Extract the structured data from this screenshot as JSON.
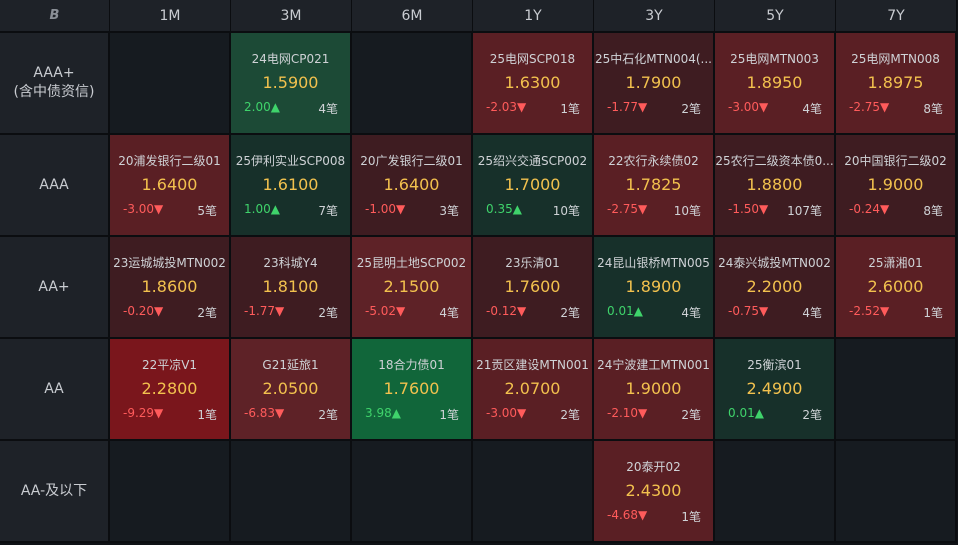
{
  "corner_icon": "b-logo-icon",
  "columns": [
    "1M",
    "3M",
    "6M",
    "1Y",
    "3Y",
    "5Y",
    "7Y"
  ],
  "rows": [
    {
      "label_line1": "AAA+",
      "label_line2": "(含中债资信)"
    },
    {
      "label_line1": "AAA",
      "label_line2": ""
    },
    {
      "label_line1": "AA+",
      "label_line2": ""
    },
    {
      "label_line1": "AA",
      "label_line2": ""
    },
    {
      "label_line1": "AA-及以下",
      "label_line2": ""
    }
  ],
  "cells": {
    "r0": {
      "c1": {
        "name": "24电网CP021",
        "rate": "1.5900",
        "change": "2.00▲",
        "count": "4笔",
        "dir": "up",
        "tone": "grn2"
      },
      "c3": {
        "name": "25电网SCP018",
        "rate": "1.6300",
        "change": "-2.03▼",
        "count": "1笔",
        "dir": "down",
        "tone": "red2"
      },
      "c4": {
        "name": "25中石化MTN004(...",
        "rate": "1.7900",
        "change": "-1.77▼",
        "count": "2笔",
        "dir": "down",
        "tone": "red1"
      },
      "c5": {
        "name": "25电网MTN003",
        "rate": "1.8950",
        "change": "-3.00▼",
        "count": "4笔",
        "dir": "down",
        "tone": "red2"
      },
      "c6": {
        "name": "25电网MTN008",
        "rate": "1.8975",
        "change": "-2.75▼",
        "count": "8笔",
        "dir": "down",
        "tone": "red2"
      }
    },
    "r1": {
      "c0": {
        "name": "20浦发银行二级01",
        "rate": "1.6400",
        "change": "-3.00▼",
        "count": "5笔",
        "dir": "down",
        "tone": "red2"
      },
      "c1": {
        "name": "25伊利实业SCP008",
        "rate": "1.6100",
        "change": "1.00▲",
        "count": "7笔",
        "dir": "up",
        "tone": "grn1"
      },
      "c2": {
        "name": "20广发银行二级01",
        "rate": "1.6400",
        "change": "-1.00▼",
        "count": "3笔",
        "dir": "down",
        "tone": "red1"
      },
      "c3": {
        "name": "25绍兴交通SCP002",
        "rate": "1.7000",
        "change": "0.35▲",
        "count": "10笔",
        "dir": "up",
        "tone": "grn1"
      },
      "c4": {
        "name": "22农行永续债02",
        "rate": "1.7825",
        "change": "-2.75▼",
        "count": "10笔",
        "dir": "down",
        "tone": "red2"
      },
      "c5": {
        "name": "25农行二级资本债0...",
        "rate": "1.8800",
        "change": "-1.50▼",
        "count": "107笔",
        "dir": "down",
        "tone": "red1"
      },
      "c6": {
        "name": "20中国银行二级02",
        "rate": "1.9000",
        "change": "-0.24▼",
        "count": "8笔",
        "dir": "down",
        "tone": "red1"
      }
    },
    "r2": {
      "c0": {
        "name": "23运城城投MTN002",
        "rate": "1.8600",
        "change": "-0.20▼",
        "count": "2笔",
        "dir": "down",
        "tone": "red1"
      },
      "c1": {
        "name": "23科城Y4",
        "rate": "1.8100",
        "change": "-1.77▼",
        "count": "2笔",
        "dir": "down",
        "tone": "red1"
      },
      "c2": {
        "name": "25昆明土地SCP002",
        "rate": "2.1500",
        "change": "-5.02▼",
        "count": "4笔",
        "dir": "down",
        "tone": "red4"
      },
      "c3": {
        "name": "23乐清01",
        "rate": "1.7600",
        "change": "-0.12▼",
        "count": "2笔",
        "dir": "down",
        "tone": "red1"
      },
      "c4": {
        "name": "24昆山银桥MTN005",
        "rate": "1.8900",
        "change": "0.01▲",
        "count": "4笔",
        "dir": "up",
        "tone": "grn1"
      },
      "c5": {
        "name": "24泰兴城投MTN002",
        "rate": "2.2000",
        "change": "-0.75▼",
        "count": "4笔",
        "dir": "down",
        "tone": "red1"
      },
      "c6": {
        "name": "25潇湘01",
        "rate": "2.6000",
        "change": "-2.52▼",
        "count": "1笔",
        "dir": "down",
        "tone": "red2"
      }
    },
    "r3": {
      "c0": {
        "name": "22平凉V1",
        "rate": "2.2800",
        "change": "-9.29▼",
        "count": "1笔",
        "dir": "down",
        "tone": "red3"
      },
      "c1": {
        "name": "G21延旅1",
        "rate": "2.0500",
        "change": "-6.83▼",
        "count": "2笔",
        "dir": "down",
        "tone": "red4"
      },
      "c2": {
        "name": "18合力债01",
        "rate": "1.7600",
        "change": "3.98▲",
        "count": "1笔",
        "dir": "up",
        "tone": "grn3"
      },
      "c3": {
        "name": "21贡区建设MTN001",
        "rate": "2.0700",
        "change": "-3.00▼",
        "count": "2笔",
        "dir": "down",
        "tone": "red2"
      },
      "c4": {
        "name": "24宁波建工MTN001",
        "rate": "1.9000",
        "change": "-2.10▼",
        "count": "2笔",
        "dir": "down",
        "tone": "red2"
      },
      "c5": {
        "name": "25衡滨01",
        "rate": "2.4900",
        "change": "0.01▲",
        "count": "2笔",
        "dir": "up",
        "tone": "grn1"
      }
    },
    "r4": {
      "c4": {
        "name": "20泰开02",
        "rate": "2.4300",
        "change": "-4.68▼",
        "count": "1笔",
        "dir": "down",
        "tone": "red2"
      }
    }
  }
}
